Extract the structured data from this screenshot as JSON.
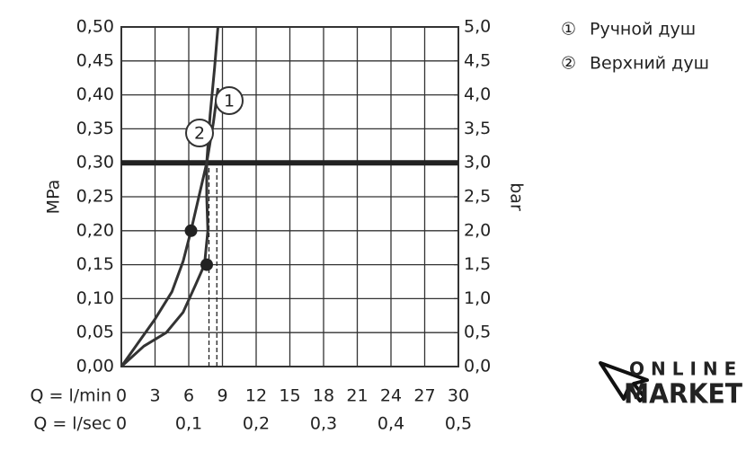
{
  "chart_data": {
    "type": "line",
    "y_label": "MPa",
    "y2_label": "bar",
    "x_label": "Q = l/min",
    "x2_label": "Q = l/sec",
    "xlim": [
      0,
      30
    ],
    "xticks": [
      0,
      3,
      6,
      9,
      12,
      15,
      18,
      21,
      24,
      27,
      30
    ],
    "x2lim": [
      0,
      0.5
    ],
    "x2ticks": [
      0,
      {
        "value": 0.1,
        "label": "0,1"
      },
      {
        "value": 0.2,
        "label": "0,2"
      },
      {
        "value": 0.3,
        "label": "0,3"
      },
      {
        "value": 0.4,
        "label": "0,4"
      },
      {
        "value": 0.5,
        "label": "0,5"
      }
    ],
    "ylim": [
      0,
      0.5
    ],
    "yticks": [
      {
        "value": 0,
        "label": "0,00"
      },
      {
        "value": 0.05,
        "label": "0,05"
      },
      {
        "value": 0.1,
        "label": "0,10"
      },
      {
        "value": 0.15,
        "label": "0,15"
      },
      {
        "value": 0.2,
        "label": "0,20"
      },
      {
        "value": 0.25,
        "label": "0,25"
      },
      {
        "value": 0.3,
        "label": "0,30"
      },
      {
        "value": 0.35,
        "label": "0,35"
      },
      {
        "value": 0.4,
        "label": "0,40"
      },
      {
        "value": 0.45,
        "label": "0,45"
      },
      {
        "value": 0.5,
        "label": "0,50"
      }
    ],
    "y2lim": [
      0,
      5
    ],
    "y2ticks": [
      {
        "value": 0,
        "label": "0,0"
      },
      {
        "value": 0.5,
        "label": "0,5"
      },
      {
        "value": 1,
        "label": "1,0"
      },
      {
        "value": 1.5,
        "label": "1,5"
      },
      {
        "value": 2,
        "label": "2,0"
      },
      {
        "value": 2.5,
        "label": "2,5"
      },
      {
        "value": 3,
        "label": "3,0"
      },
      {
        "value": 3.5,
        "label": "3,5"
      },
      {
        "value": 4,
        "label": "4,0"
      },
      {
        "value": 4.5,
        "label": "4,5"
      },
      {
        "value": 5,
        "label": "5,0"
      }
    ],
    "grid": true,
    "reference_y": 0.3,
    "series": [
      {
        "name": "1",
        "color": "#333",
        "x": [
          0,
          2,
          4,
          5.5,
          6.6,
          7.4,
          7.7,
          7.6,
          7.6,
          7.9,
          8.3,
          8.6
        ],
        "values": [
          0,
          0.03,
          0.05,
          0.08,
          0.12,
          0.15,
          0.2,
          0.25,
          0.3,
          0.37,
          0.44,
          0.5
        ]
      },
      {
        "name": "2",
        "color": "#333",
        "x": [
          0,
          1.5,
          3,
          4.5,
          5.5,
          6.2,
          6.9,
          7.6,
          8.2,
          8.6
        ],
        "values": [
          0,
          0.035,
          0.07,
          0.11,
          0.155,
          0.2,
          0.25,
          0.3,
          0.36,
          0.41
        ]
      }
    ],
    "points": [
      {
        "x": 6.2,
        "y": 0.2
      },
      {
        "x": 7.6,
        "y": 0.15
      }
    ],
    "dashed_x": [
      7.8,
      8.5
    ],
    "legend": [
      {
        "marker": "①",
        "label": "Ручной душ"
      },
      {
        "marker": "②",
        "label": "Верхний душ"
      }
    ]
  },
  "logo": {
    "line1": "ONLINE",
    "line2": "MARKET"
  }
}
